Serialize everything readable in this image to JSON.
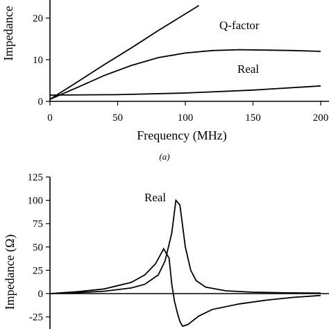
{
  "chart_data": [
    {
      "type": "line",
      "panel_label": "(a)",
      "xlabel": "Frequency (MHz)",
      "ylabel": "Impedance",
      "xlim": [
        0,
        200
      ],
      "ylim": [
        0,
        23
      ],
      "xticks": [
        0,
        50,
        100,
        150,
        200
      ],
      "xtick_labels": [
        "0",
        "50",
        "100",
        "150",
        "200"
      ],
      "yticks": [
        0,
        10,
        20
      ],
      "ytick_labels": [
        "0",
        "10",
        "20"
      ],
      "series": [
        {
          "x": [
            0,
            20,
            40,
            60,
            80,
            100,
            110
          ],
          "y": [
            0.5,
            4.6,
            8.8,
            12.8,
            17,
            21,
            23
          ]
        },
        {
          "name": "Q-factor",
          "x": [
            0,
            20,
            40,
            60,
            80,
            100,
            120,
            140,
            160,
            180,
            200
          ],
          "y": [
            0.5,
            3.3,
            6.2,
            8.6,
            10.5,
            11.6,
            12.2,
            12.4,
            12.3,
            12.2,
            12.0
          ]
        },
        {
          "name": "Real",
          "x": [
            0,
            50,
            100,
            150,
            200
          ],
          "y": [
            1.5,
            1.6,
            2.0,
            2.7,
            3.7
          ]
        }
      ]
    },
    {
      "type": "line",
      "ylabel": "Impedance (Ω)",
      "xlim": [
        0,
        200
      ],
      "ylim": [
        -30,
        125
      ],
      "yticks": [
        -25,
        0,
        25,
        50,
        75,
        100,
        125
      ],
      "ytick_labels": [
        "-25",
        "0",
        "25",
        "50",
        "75",
        "100",
        "125"
      ],
      "series": [
        {
          "name": "Real",
          "x": [
            0,
            20,
            40,
            60,
            70,
            80,
            85,
            90,
            93,
            96,
            100,
            104,
            108,
            115,
            130,
            150,
            175,
            200
          ],
          "y": [
            0,
            1,
            2.5,
            6,
            10,
            20,
            35,
            65,
            100,
            95,
            50,
            25,
            14,
            7,
            3,
            1.5,
            0.8,
            0.5
          ]
        },
        {
          "x": [
            0,
            20,
            40,
            60,
            70,
            78,
            84,
            88,
            90,
            92,
            94,
            96,
            98,
            102,
            110,
            120,
            140,
            160,
            180,
            200
          ],
          "y": [
            0,
            2,
            5,
            12,
            20,
            32,
            48,
            38,
            10,
            -8,
            -20,
            -30,
            -35,
            -33,
            -24,
            -17,
            -11,
            -7,
            -4,
            -2
          ]
        }
      ]
    }
  ]
}
